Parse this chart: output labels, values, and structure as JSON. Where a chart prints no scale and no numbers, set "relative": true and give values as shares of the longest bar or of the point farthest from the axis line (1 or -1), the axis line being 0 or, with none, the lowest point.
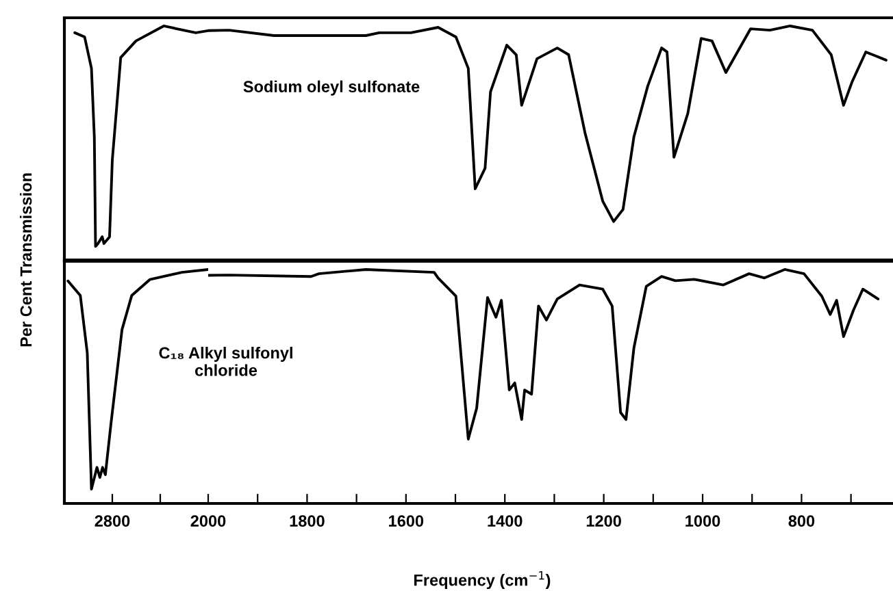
{
  "chart_data": [
    {
      "type": "line",
      "relative": true,
      "xlim": [
        3200,
        2000
      ],
      "tick_labels": false,
      "grid": false,
      "legend": false,
      "marker": "none",
      "line_style": "solid",
      "series": [
        {
          "color": "#000000",
          "x": [
            3113,
            3031,
            2974,
            2950,
            2940,
            2919,
            2884,
            2870,
            2823,
            2800,
            2753,
            2730,
            2603,
            2371,
            2104,
            2000
          ],
          "values": [
            0.971,
            0.953,
            0.819,
            0.526,
            0.058,
            0.07,
            0.099,
            0.07,
            0.099,
            0.427,
            0.719,
            0.865,
            0.936,
            1.0,
            0.971,
            0.98
          ]
        }
      ]
    },
    {
      "type": "line",
      "relative": true,
      "xlim": [
        2000,
        615
      ],
      "tick_labels": false,
      "grid": false,
      "legend": false,
      "marker": "none",
      "line_style": "solid",
      "series": [
        {
          "name": "Sodium oleyl sulfonate",
          "color": "#000000",
          "x": [
            2000,
            1958,
            1867,
            1756,
            1681,
            1654,
            1590,
            1535,
            1499,
            1474,
            1460,
            1440,
            1429,
            1396,
            1377,
            1366,
            1335,
            1294,
            1271,
            1238,
            1202,
            1180,
            1161,
            1139,
            1111,
            1083,
            1072,
            1058,
            1030,
            1003,
            981,
            953,
            903,
            864,
            823,
            778,
            740,
            715,
            698,
            670,
            629
          ],
          "values": [
            0.98,
            0.982,
            0.959,
            0.959,
            0.959,
            0.971,
            0.971,
            0.994,
            0.953,
            0.819,
            0.304,
            0.392,
            0.719,
            0.918,
            0.877,
            0.661,
            0.86,
            0.906,
            0.877,
            0.544,
            0.251,
            0.164,
            0.216,
            0.526,
            0.743,
            0.906,
            0.889,
            0.439,
            0.626,
            0.947,
            0.936,
            0.801,
            0.988,
            0.982,
            1.0,
            0.982,
            0.877,
            0.661,
            0.76,
            0.889,
            0.854
          ]
        }
      ]
    },
    {
      "type": "line",
      "relative": true,
      "xlim": [
        3200,
        2000
      ],
      "tick_labels": "x",
      "grid": false,
      "legend": false,
      "marker": "none",
      "line_style": "solid",
      "ylabel": "Per Cent Transmission",
      "xticks": [
        2800,
        {
          "value": 2400,
          "label": null
        },
        2000
      ],
      "series": [
        {
          "color": "#000000",
          "x": [
            3170,
            3067,
            3009,
            2974,
            2928,
            2904,
            2881,
            2858,
            2812,
            2719,
            2638,
            2487,
            2220,
            2000
          ],
          "values": [
            0.951,
            0.889,
            0.644,
            0.061,
            0.154,
            0.111,
            0.154,
            0.123,
            0.337,
            0.743,
            0.889,
            0.957,
            0.988,
            1.0
          ]
        }
      ]
    },
    {
      "type": "line",
      "relative": true,
      "xlim": [
        2000,
        615
      ],
      "tick_labels": "x",
      "grid": false,
      "legend": false,
      "marker": "none",
      "line_style": "solid",
      "xlabel": "Frequency (cm$^{−1}$)",
      "xticks": [
        {
          "value": 1900,
          "label": null
        },
        1800,
        {
          "value": 1700,
          "label": null
        },
        1600,
        {
          "value": 1500,
          "label": null
        },
        1400,
        {
          "value": 1300,
          "label": null
        },
        1200,
        {
          "value": 1100,
          "label": null
        },
        1000,
        {
          "value": 900,
          "label": null
        },
        800,
        {
          "value": 700,
          "label": null
        }
      ],
      "series": [
        {
          "name": "C₁₈ Alkyl sulfonyl\nchloride",
          "color": "#000000",
          "x": [
            2000,
            1958,
            1792,
            1776,
            1681,
            1543,
            1535,
            1499,
            1474,
            1457,
            1435,
            1418,
            1407,
            1391,
            1380,
            1366,
            1360,
            1346,
            1332,
            1316,
            1294,
            1249,
            1202,
            1183,
            1166,
            1155,
            1139,
            1114,
            1083,
            1055,
            1017,
            958,
            906,
            875,
            834,
            795,
            759,
            742,
            729,
            715,
            695,
            676,
            645
          ],
          "values": [
            0.975,
            0.976,
            0.97,
            0.982,
            1.0,
            0.988,
            0.964,
            0.886,
            0.275,
            0.407,
            0.88,
            0.796,
            0.868,
            0.485,
            0.515,
            0.359,
            0.485,
            0.467,
            0.844,
            0.784,
            0.874,
            0.934,
            0.916,
            0.844,
            0.389,
            0.359,
            0.665,
            0.928,
            0.97,
            0.952,
            0.958,
            0.934,
            0.982,
            0.964,
            1.0,
            0.982,
            0.886,
            0.808,
            0.868,
            0.713,
            0.826,
            0.916,
            0.874
          ]
        }
      ]
    }
  ]
}
